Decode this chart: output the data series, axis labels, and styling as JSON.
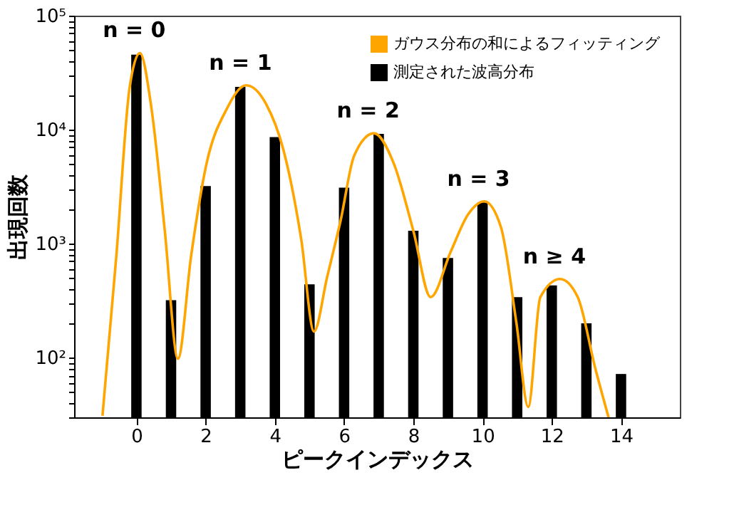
{
  "chart_data": {
    "type": "bar",
    "xlabel": "ピークインデックス",
    "ylabel": "出現回数",
    "series": [
      {
        "name": "ガウス分布の和によるフィッティング",
        "type": "line",
        "color": "#ffa500",
        "x": [
          -0.98,
          -0.58,
          -0.2,
          0.1,
          0.44,
          0.82,
          1.2,
          1.58,
          2.03,
          2.6,
          3.17,
          3.75,
          4.25,
          4.76,
          5.13,
          5.51,
          5.9,
          6.29,
          6.86,
          7.43,
          8.0,
          8.5,
          9.08,
          9.58,
          10.05,
          10.53,
          10.98,
          11.32,
          11.67,
          12.24,
          12.75,
          13.26,
          13.64
        ],
        "values": [
          31,
          780,
          23000,
          47000,
          15000,
          1300,
          98,
          780,
          5100,
          15000,
          24500,
          16700,
          6600,
          1100,
          170,
          510,
          1600,
          5900,
          9300,
          5100,
          1300,
          340,
          850,
          1800,
          2350,
          1400,
          200,
          37,
          340,
          490,
          340,
          80,
          30
        ]
      },
      {
        "name": "測定された波高分布",
        "color": "#000000",
        "x": [
          0,
          1,
          2,
          3,
          4,
          5,
          6,
          7,
          8,
          9,
          10,
          11,
          12,
          13,
          14
        ],
        "values": [
          45500,
          320,
          3200,
          23700,
          8600,
          440,
          3100,
          9200,
          1300,
          750,
          2300,
          340,
          430,
          200,
          72
        ]
      }
    ],
    "log": "y",
    "xlim": [
      -1.8,
      15.7
    ],
    "ylim": [
      30,
      100000
    ],
    "xticks": [
      0,
      2,
      4,
      6,
      8,
      10,
      12,
      14
    ],
    "yticks": [
      {
        "value": 30,
        "label": null
      },
      {
        "value": 40,
        "label": null
      },
      {
        "value": 50,
        "label": null
      },
      {
        "value": 60,
        "label": null
      },
      {
        "value": 70,
        "label": null
      },
      {
        "value": 80,
        "label": null
      },
      {
        "value": 90,
        "label": null
      },
      {
        "value": 100,
        "label": "10²"
      },
      {
        "value": 200,
        "label": null
      },
      {
        "value": 300,
        "label": null
      },
      {
        "value": 400,
        "label": null
      },
      {
        "value": 500,
        "label": null
      },
      {
        "value": 600,
        "label": null
      },
      {
        "value": 700,
        "label": null
      },
      {
        "value": 800,
        "label": null
      },
      {
        "value": 900,
        "label": null
      },
      {
        "value": 1000,
        "label": "10³"
      },
      {
        "value": 2000,
        "label": null
      },
      {
        "value": 3000,
        "label": null
      },
      {
        "value": 4000,
        "label": null
      },
      {
        "value": 5000,
        "label": null
      },
      {
        "value": 6000,
        "label": null
      },
      {
        "value": 7000,
        "label": null
      },
      {
        "value": 8000,
        "label": null
      },
      {
        "value": 9000,
        "label": null
      },
      {
        "value": 10000,
        "label": "10⁴"
      },
      {
        "value": 20000,
        "label": null
      },
      {
        "value": 30000,
        "label": null
      },
      {
        "value": 40000,
        "label": null
      },
      {
        "value": 50000,
        "label": null
      },
      {
        "value": 60000,
        "label": null
      },
      {
        "value": 70000,
        "label": null
      },
      {
        "value": 80000,
        "label": null
      },
      {
        "value": 90000,
        "label": null
      },
      {
        "value": 100000,
        "label": "10⁵"
      }
    ],
    "annotations": [
      "n = 0",
      "n = 1",
      "n = 2",
      "n = 3",
      "n ≥ 4"
    ],
    "legend": "top right",
    "grid": false
  }
}
